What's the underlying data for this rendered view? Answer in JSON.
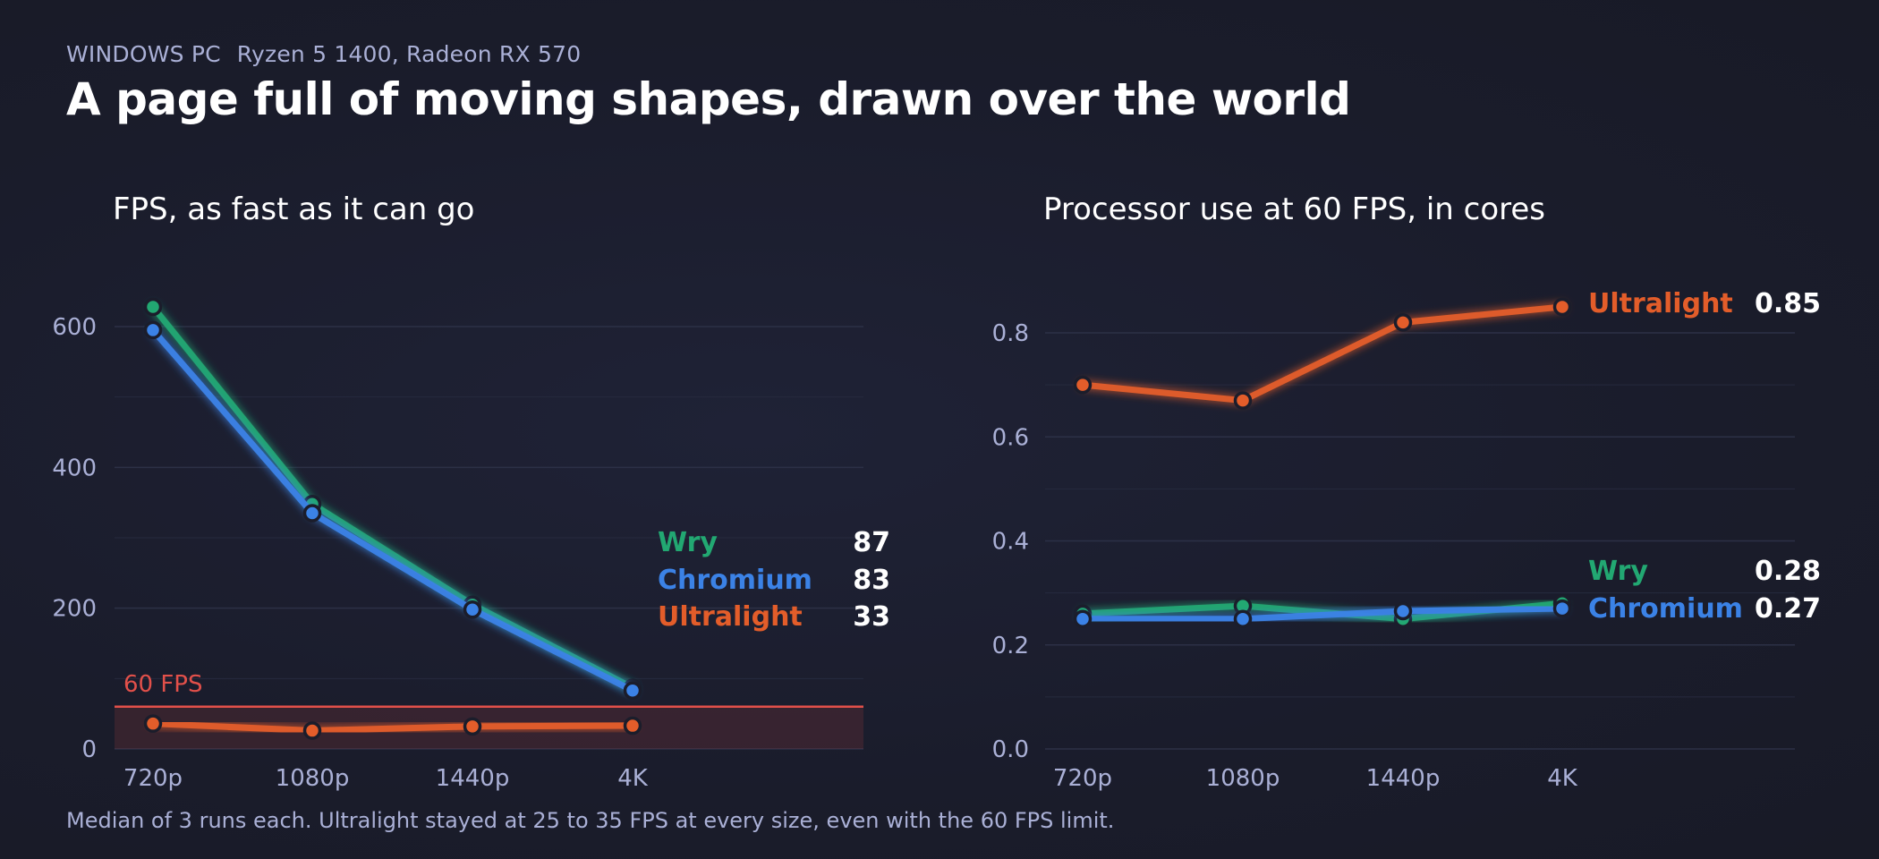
{
  "header": {
    "eyebrow_platform": "WINDOWS PC",
    "eyebrow_hardware": "Ryzen 5 1400, Radeon RX 570",
    "title": "A page full of moving shapes, drawn over the world"
  },
  "footnote": "Median of 3 runs each. Ultralight stayed at 25 to 35 FPS at every size, even with the 60 FPS limit.",
  "colors": {
    "wry": "#22a872",
    "chromium": "#3b82e6",
    "ultralight": "#e35d2a",
    "reference": "#e2504a"
  },
  "chart_data": [
    {
      "type": "line",
      "title": "FPS, as fast as it can go",
      "categories": [
        "720p",
        "1080p",
        "1440p",
        "4K"
      ],
      "ylim": [
        0,
        700
      ],
      "yticks": [
        "0",
        "200",
        "400",
        "600"
      ],
      "grid": true,
      "reference_line": {
        "value": 60,
        "label": "60 FPS"
      },
      "series": [
        {
          "name": "Wry",
          "values": [
            628,
            348,
            205,
            87
          ],
          "end_label": "87",
          "color": "#22a872"
        },
        {
          "name": "Chromium",
          "values": [
            595,
            335,
            198,
            83
          ],
          "end_label": "83",
          "color": "#3b82e6"
        },
        {
          "name": "Ultralight",
          "values": [
            36,
            26,
            32,
            33
          ],
          "end_label": "33",
          "color": "#e35d2a"
        }
      ]
    },
    {
      "type": "line",
      "title": "Processor use at 60 FPS, in cores",
      "categories": [
        "720p",
        "1080p",
        "1440p",
        "4K"
      ],
      "ylim": [
        0,
        0.9
      ],
      "yticks": [
        "0.0",
        "0.2",
        "0.4",
        "0.6",
        "0.8"
      ],
      "grid": true,
      "series": [
        {
          "name": "Ultralight",
          "values": [
            0.7,
            0.67,
            0.82,
            0.85
          ],
          "end_label": "0.85",
          "color": "#e35d2a"
        },
        {
          "name": "Wry",
          "values": [
            0.26,
            0.275,
            0.25,
            0.28
          ],
          "end_label": "0.28",
          "color": "#22a872"
        },
        {
          "name": "Chromium",
          "values": [
            0.25,
            0.25,
            0.265,
            0.27
          ],
          "end_label": "0.27",
          "color": "#3b82e6"
        }
      ]
    }
  ]
}
